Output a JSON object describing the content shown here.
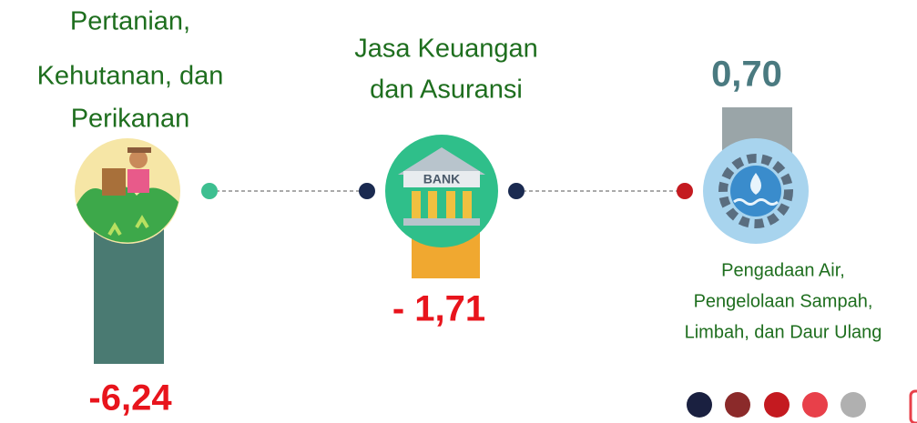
{
  "sectors": [
    {
      "label": [
        "Pertanian,",
        "Kehutanan, dan",
        "Perikanan"
      ],
      "value": "-6,24"
    },
    {
      "label": [
        "Jasa Keuangan",
        "dan Asuransi"
      ],
      "icon_text": "BANK",
      "value": "- 1,71"
    },
    {
      "label": [
        "Pengadaan Air,",
        "Pengelolaan Sampah,",
        "Limbah, dan Daur Ulang"
      ],
      "value": "0,70"
    }
  ]
}
